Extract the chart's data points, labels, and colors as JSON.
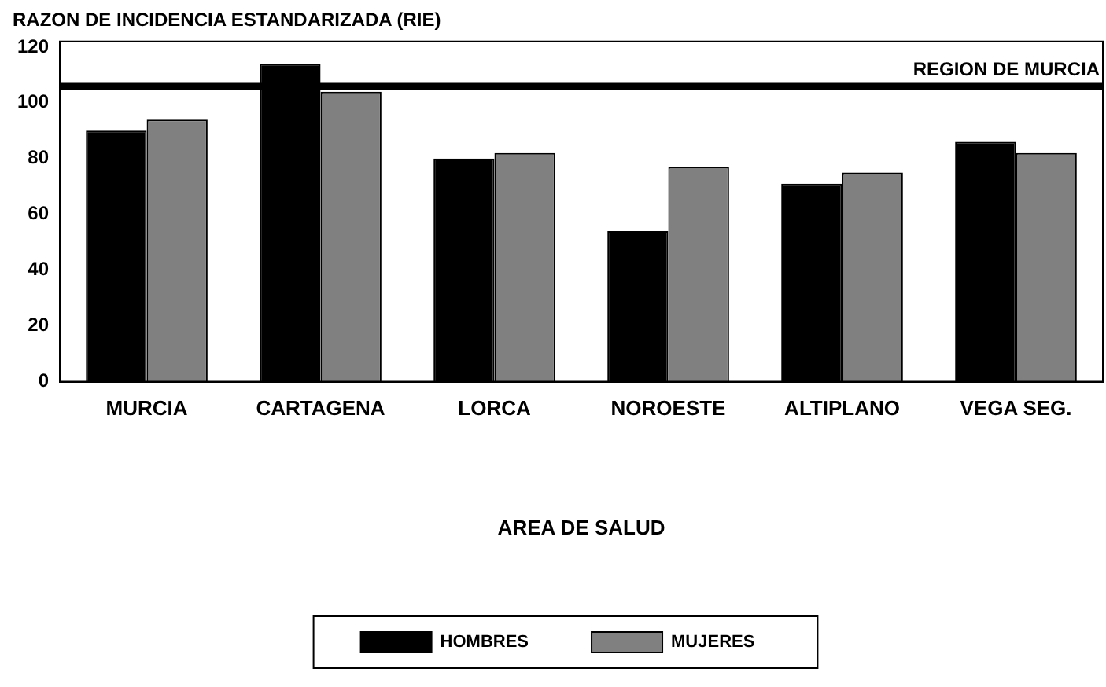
{
  "chart_data": {
    "type": "bar",
    "title": "RAZON DE INCIDENCIA ESTANDARIZADA (RIE)",
    "xlabel": "AREA DE SALUD",
    "categories": [
      "MURCIA",
      "CARTAGENA",
      "LORCA",
      "NOROESTE",
      "ALTIPLANO",
      "VEGA SEG."
    ],
    "series": [
      {
        "name": "HOMBRES",
        "color": "#000000",
        "values": [
          90,
          114,
          80,
          54,
          71,
          86
        ]
      },
      {
        "name": "MUJERES",
        "color": "#808080",
        "values": [
          94,
          104,
          82,
          77,
          75,
          82
        ]
      }
    ],
    "ylim": [
      0,
      122
    ],
    "yticks": [
      0,
      20,
      40,
      60,
      80,
      100,
      120
    ],
    "grid": false,
    "legend": "bottom",
    "ref_lines": [
      {
        "axis": "y",
        "value": 106,
        "label": "REGION DE MURCIA",
        "color": "#000000"
      }
    ]
  }
}
